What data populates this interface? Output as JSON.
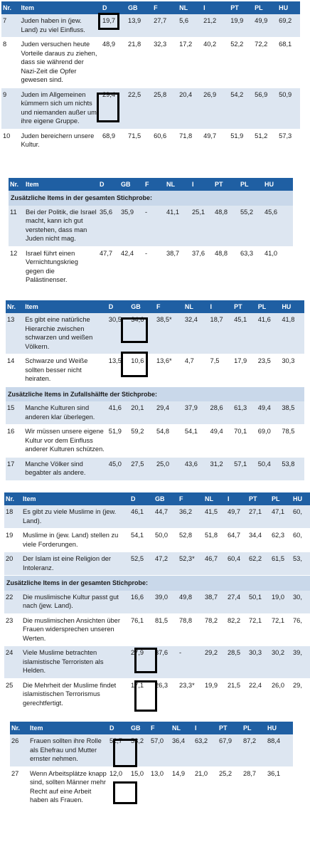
{
  "columns": [
    "Nr.",
    "Item",
    "D",
    "GB",
    "F",
    "NL",
    "I",
    "PT",
    "PL",
    "HU"
  ],
  "tables": [
    {
      "rows": [
        {
          "type": "row",
          "nr": "7",
          "item": "Juden haben in (jew. Land) zu viel Einfluss.",
          "vals": [
            "19,7",
            "13,9",
            "27,7",
            "5,6",
            "21,2",
            "19,9",
            "49,9",
            "69,2"
          ]
        },
        {
          "type": "row",
          "nr": "8",
          "item": "Juden versuchen heute Vorteile daraus zu ziehen, dass sie während der Nazi-Zeit die Opfer gewesen sind.",
          "vals": [
            "48,9",
            "21,8",
            "32,3",
            "17,2",
            "40,2",
            "52,2",
            "72,2",
            "68,1"
          ]
        },
        {
          "type": "row",
          "nr": "9",
          "item": "Juden im Allgemeinen kümmern sich um nichts und niemanden außer um ihre eigene Gruppe.",
          "vals": [
            "29,4",
            "22,5",
            "25,8",
            "20,4",
            "26,9",
            "54,2",
            "56,9",
            "50,9"
          ]
        },
        {
          "type": "row",
          "nr": "10",
          "item": "Juden bereichern unsere Kultur.",
          "vals": [
            "68,9",
            "71,5",
            "60,6",
            "71,8",
            "49,7",
            "51,9",
            "51,2",
            "57,3"
          ]
        }
      ]
    },
    {
      "rows": [
        {
          "type": "section",
          "label": "Zusätzliche Items in der gesamten Stichprobe:"
        },
        {
          "type": "row",
          "nr": "11",
          "item": "Bei der Politik, die Israel macht, kann ich gut verstehen, dass man Juden nicht mag.",
          "vals": [
            "35,6",
            "35,9",
            "-",
            "41,1",
            "25,1",
            "48,8",
            "55,2",
            "45,6"
          ]
        },
        {
          "type": "row",
          "nr": "12",
          "item": "Israel führt einen Vernichtungskrieg gegen die Palästinenser.",
          "vals": [
            "47,7",
            "42,4",
            "-",
            "38,7",
            "37,6",
            "48,8",
            "63,3",
            "41,0"
          ]
        }
      ]
    },
    {
      "rows": [
        {
          "type": "row",
          "nr": "13",
          "item": "Es gibt eine natürliche Hierarchie zwischen schwarzen und weißen Völkern.",
          "vals": [
            "30,5",
            "34,6",
            "38,5*",
            "32,4",
            "18,7",
            "45,1",
            "41,6",
            "41,8"
          ]
        },
        {
          "type": "row",
          "nr": "14",
          "item": "Schwarze und Weiße sollten besser nicht heiraten.",
          "vals": [
            "13,5",
            "10,6",
            "13,6*",
            "4,7",
            "7,5",
            "17,9",
            "23,5",
            "30,3"
          ]
        },
        {
          "type": "section",
          "label": "Zusätzliche Items in Zufallshälfte der Stichprobe:"
        },
        {
          "type": "row",
          "nr": "15",
          "item": "Manche Kulturen sind anderen klar überlegen.",
          "vals": [
            "41,6",
            "20,1",
            "29,4",
            "37,9",
            "28,6",
            "61,3",
            "49,4",
            "38,5"
          ]
        },
        {
          "type": "row",
          "nr": "16",
          "item": "Wir müssen unsere eigene Kultur vor dem Einfluss anderer Kulturen schützen.",
          "vals": [
            "51,9",
            "59,2",
            "54,8",
            "54,1",
            "49,4",
            "70,1",
            "69,0",
            "78,5"
          ]
        },
        {
          "type": "row",
          "nr": "17",
          "item": "Manche Völker sind begabter als andere.",
          "vals": [
            "45,0",
            "27,5",
            "25,0",
            "43,6",
            "31,2",
            "57,1",
            "50,4",
            "53,8"
          ]
        }
      ]
    },
    {
      "rows": [
        {
          "type": "row",
          "nr": "18",
          "item": "Es gibt zu viele Muslime in (jew. Land).",
          "vals": [
            "46,1",
            "44,7",
            "36,2",
            "41,5",
            "49,7",
            "27,1",
            "47,1",
            "60,"
          ]
        },
        {
          "type": "row",
          "nr": "19",
          "item": "Muslime in (jew. Land) stellen zu viele Forderungen.",
          "vals": [
            "54,1",
            "50,0",
            "52,8",
            "51,8",
            "64,7",
            "34,4",
            "62,3",
            "60,"
          ]
        },
        {
          "type": "row",
          "nr": "20",
          "item": "Der Islam ist eine Religion der Intoleranz.",
          "vals": [
            "52,5",
            "47,2",
            "52,3*",
            "46,7",
            "60,4",
            "62,2",
            "61,5",
            "53,"
          ]
        },
        {
          "type": "section",
          "label": "Zusätzliche Items in der gesamten Stichprobe:"
        },
        {
          "type": "row",
          "nr": "22",
          "item": "Die muslimische Kultur passt gut nach (jew. Land).",
          "vals": [
            "16,6",
            "39,0",
            "49,8",
            "38,7",
            "27,4",
            "50,1",
            "19,0",
            "30,"
          ]
        },
        {
          "type": "row",
          "nr": "23",
          "item": "Die muslimischen Ansichten über Frauen widersprechen unseren Werten.",
          "vals": [
            "76,1",
            "81,5",
            "78,8",
            "78,2",
            "82,2",
            "72,1",
            "72,1",
            "76,"
          ]
        },
        {
          "type": "row",
          "nr": "24",
          "item": "Viele Muslime betrachten islamistische Terroristen als Helden.",
          "vals": [
            "27,9",
            "37,6",
            "-",
            "29,2",
            "28,5",
            "30,3",
            "30,2",
            "39,"
          ]
        },
        {
          "type": "row",
          "nr": "25",
          "item": "Die Mehrheit der Muslime findet islamistischen Terrorismus gerechtfertigt.",
          "vals": [
            "17,1",
            "26,3",
            "23,3*",
            "19,9",
            "21,5",
            "22,4",
            "26,0",
            "29,"
          ]
        }
      ]
    },
    {
      "rows": [
        {
          "type": "row",
          "nr": "26",
          "item": "Frauen sollten ihre Rolle als Ehefrau und Mutter ernster nehmen.",
          "vals": [
            "52,7",
            "53,2",
            "57,0",
            "36,4",
            "63,2",
            "67,9",
            "87,2",
            "88,4"
          ]
        },
        {
          "type": "row",
          "nr": "27",
          "item": "Wenn Arbeitsplätze knapp sind, sollten Männer mehr Recht auf eine Arbeit haben als Frauen.",
          "vals": [
            "12,0",
            "15,0",
            "13,0",
            "14,9",
            "21,0",
            "25,2",
            "28,7",
            "36,1"
          ]
        }
      ]
    }
  ]
}
